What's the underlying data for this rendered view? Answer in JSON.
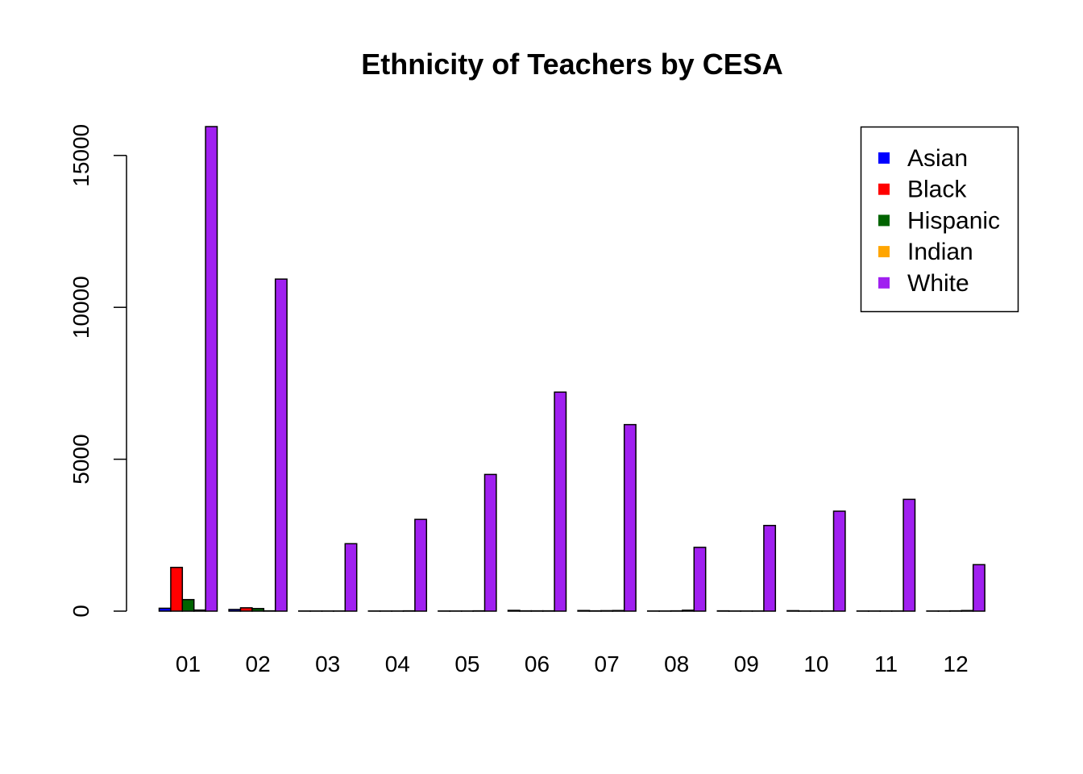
{
  "chart_data": {
    "type": "bar",
    "title": "Ethnicity of Teachers by CESA",
    "xlabel": "",
    "ylabel": "",
    "categories": [
      "01",
      "02",
      "03",
      "04",
      "05",
      "06",
      "07",
      "08",
      "09",
      "10",
      "11",
      "12"
    ],
    "series": [
      {
        "name": "Asian",
        "color": "#0000FF",
        "values": [
          95,
          55,
          5,
          5,
          5,
          25,
          20,
          5,
          10,
          15,
          5,
          5
        ]
      },
      {
        "name": "Black",
        "color": "#FF0000",
        "values": [
          1440,
          110,
          5,
          5,
          5,
          10,
          10,
          5,
          5,
          5,
          5,
          5
        ]
      },
      {
        "name": "Hispanic",
        "color": "#006400",
        "values": [
          380,
          85,
          5,
          5,
          5,
          10,
          15,
          10,
          5,
          5,
          5,
          10
        ]
      },
      {
        "name": "Indian",
        "color": "#FFA500",
        "values": [
          35,
          10,
          5,
          10,
          10,
          10,
          20,
          30,
          5,
          5,
          5,
          20
        ]
      },
      {
        "name": "White",
        "color": "#A020F0",
        "values": [
          15950,
          10930,
          2220,
          3020,
          4500,
          7210,
          6140,
          2100,
          2820,
          3290,
          3680,
          1530
        ]
      }
    ],
    "yticks": [
      "0",
      "5000",
      "10000",
      "15000"
    ],
    "ylim": [
      0,
      15950
    ],
    "grid": false,
    "legend_position": "top-right"
  }
}
